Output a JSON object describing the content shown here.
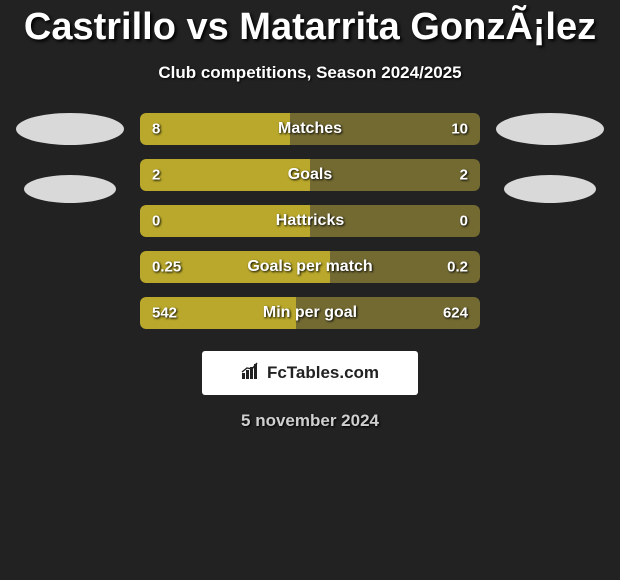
{
  "title": "Castrillo vs Matarrita GonzÃ¡lez",
  "subtitle": "Club competitions, Season 2024/2025",
  "date": "5 november 2024",
  "date_color": "#cfcfcf",
  "logo_text": "FcTables.com",
  "colors": {
    "bar_bg": "#736a32",
    "bar_fill": "#b9a82b",
    "ellipse": "#d9d9d9",
    "bg": "#222222"
  },
  "bars": [
    {
      "label": "Matches",
      "left": "8",
      "right": "10",
      "fill_pct": 44
    },
    {
      "label": "Goals",
      "left": "2",
      "right": "2",
      "fill_pct": 50
    },
    {
      "label": "Hattricks",
      "left": "0",
      "right": "0",
      "fill_pct": 50
    },
    {
      "label": "Goals per match",
      "left": "0.25",
      "right": "0.2",
      "fill_pct": 56
    },
    {
      "label": "Min per goal",
      "left": "542",
      "right": "624",
      "fill_pct": 46
    }
  ]
}
